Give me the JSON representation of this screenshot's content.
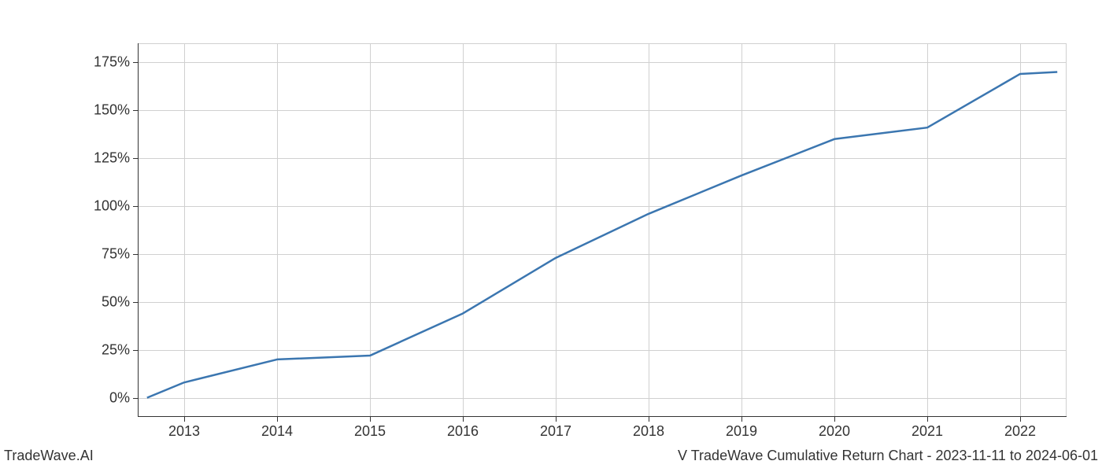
{
  "chart": {
    "type": "line",
    "x_values": [
      2012.6,
      2013,
      2014,
      2015,
      2016,
      2017,
      2018,
      2019,
      2020,
      2021,
      2022,
      2022.4
    ],
    "y_values": [
      0,
      8,
      20,
      22,
      44,
      73,
      96,
      116,
      135,
      141,
      169,
      170
    ],
    "x_ticks": [
      2013,
      2014,
      2015,
      2016,
      2017,
      2018,
      2019,
      2020,
      2021,
      2022
    ],
    "x_tick_labels": [
      "2013",
      "2014",
      "2015",
      "2016",
      "2017",
      "2018",
      "2019",
      "2020",
      "2021",
      "2022"
    ],
    "y_ticks": [
      0,
      25,
      50,
      75,
      100,
      125,
      150,
      175
    ],
    "y_tick_labels": [
      "0%",
      "25%",
      "50%",
      "75%",
      "100%",
      "125%",
      "150%",
      "175%"
    ],
    "xlim": [
      2012.5,
      2022.5
    ],
    "ylim": [
      -10,
      185
    ],
    "line_color": "#3b76b0",
    "line_width": 2.5,
    "grid_color": "#d0d0d0",
    "axis_color": "#333333",
    "background_color": "#ffffff",
    "tick_fontsize": 18,
    "footer_fontsize": 18
  },
  "footer": {
    "left": "TradeWave.AI",
    "right": "V TradeWave Cumulative Return Chart - 2023-11-11 to 2024-06-01"
  }
}
